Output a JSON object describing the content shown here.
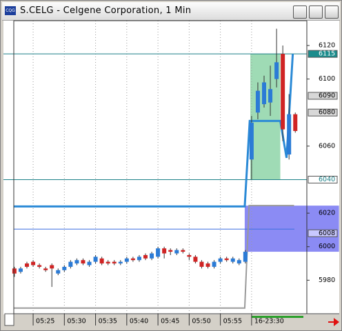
{
  "window_title": "S.CELG - Celgene Corporation, 1 Min",
  "chart_data": {
    "type": "candlestick",
    "x": [
      0,
      1,
      2,
      3,
      4,
      5,
      6,
      7,
      8,
      9,
      10,
      11,
      12,
      13,
      14,
      15,
      16,
      17,
      18,
      19,
      20,
      21,
      22,
      23,
      24,
      25,
      26,
      27,
      28,
      29,
      30,
      31,
      32,
      33,
      34,
      35,
      36,
      37,
      38,
      39,
      40,
      41,
      42,
      43,
      44,
      45
    ],
    "open": [
      5987,
      5985,
      5990,
      5991,
      5989,
      5987,
      5989,
      5984,
      5986,
      5988,
      5990,
      5992,
      5989,
      5991,
      5993,
      5991,
      5991,
      5990,
      5991,
      5993,
      5992,
      5995,
      5993,
      5994,
      5999,
      5998,
      5996,
      5998,
      5995,
      5994,
      5991,
      5990,
      5988,
      5991,
      5993,
      5991,
      5990,
      5991,
      6052,
      6080,
      6085,
      6086,
      6100,
      6115,
      6055,
      6079
    ],
    "high": [
      5988,
      5988,
      5991,
      5992,
      5990,
      5988,
      5990,
      5987,
      5989,
      5992,
      5993,
      5993,
      5992,
      5995,
      5994,
      5992,
      5992,
      5992,
      5994,
      5994,
      5995,
      5996,
      5997,
      6000,
      6000,
      5999,
      5999,
      5999,
      5996,
      5995,
      5992,
      5991,
      5992,
      5994,
      5994,
      5994,
      5993,
      5998,
      6078,
      6098,
      6102,
      6108,
      6130,
      6120,
      6091,
      6080
    ],
    "low": [
      5982,
      5984,
      5987,
      5988,
      5987,
      5985,
      5976,
      5983,
      5985,
      5987,
      5989,
      5989,
      5988,
      5990,
      5989,
      5989,
      5989,
      5989,
      5990,
      5991,
      5991,
      5992,
      5992,
      5993,
      5993,
      5995,
      5995,
      5996,
      5992,
      5990,
      5987,
      5987,
      5987,
      5990,
      5991,
      5990,
      5989,
      5990,
      6040,
      6076,
      6083,
      6078,
      6095,
      6063,
      6052,
      6068
    ],
    "close": [
      5984,
      5987,
      5988,
      5989,
      5988,
      5986,
      5987,
      5986,
      5988,
      5991,
      5992,
      5990,
      5991,
      5994,
      5990,
      5990,
      5990,
      5991,
      5993,
      5992,
      5994,
      5993,
      5996,
      5999,
      5996,
      5997,
      5998,
      5997,
      5994,
      5991,
      5988,
      5988,
      5991,
      5993,
      5992,
      5993,
      5992,
      5997,
      6074,
      6093,
      6098,
      6094,
      6110,
      6070,
      6079,
      6069
    ],
    "up_color": "#2b7bd6",
    "down_color": "#d02424",
    "xlim": [
      -0.1,
      46.85
    ],
    "ylim": [
      5960,
      6134.8
    ],
    "xticks": [
      {
        "value": 3,
        "label": "05:25"
      },
      {
        "value": 8,
        "label": "05:30"
      },
      {
        "value": 13,
        "label": "05:35"
      },
      {
        "value": 18,
        "label": "05:40"
      },
      {
        "value": 23,
        "label": "05:45"
      },
      {
        "value": 28,
        "label": "05:50"
      },
      {
        "value": 33,
        "label": "05:55"
      },
      {
        "value": 38,
        "label": "16-23:30"
      }
    ],
    "yticks": [
      5980,
      6000,
      6020,
      6060,
      6100,
      6120
    ],
    "grid_x": true,
    "zones": [
      {
        "xlim": [
          37.8,
          42.6
        ],
        "ylim": [
          6040,
          6115
        ],
        "color": "rgba(80,190,120,0.55)"
      },
      {
        "xlim": [
          36.9,
          52
        ],
        "ylim": [
          5997,
          6024.5
        ],
        "color": "rgba(90,90,240,0.7)"
      }
    ],
    "hlines": [
      {
        "value": 6115,
        "color": "#1a7f86"
      },
      {
        "value": 6040,
        "color": "#1a7f86"
      },
      {
        "value": 6010.5,
        "color": "#3d6fe0"
      }
    ],
    "markers": [
      {
        "value": 6115,
        "fill": "#1a8c8c",
        "text_color": "#ffffff"
      },
      {
        "value": 6090,
        "fill": "#d8d8d8",
        "text_color": "#000000"
      },
      {
        "value": 6080,
        "fill": "#d8d8d8",
        "text_color": "#000000"
      },
      {
        "value": 6040,
        "fill": "#ffffff",
        "text_color": "#1a7f86"
      },
      {
        "value": 6008,
        "fill": "#c8c8ff",
        "text_color": "#000000"
      }
    ],
    "lines": [
      {
        "color": "#9a9a9a",
        "width": 2,
        "x": [
          -0.1,
          36.9,
          37.6,
          44.8
        ],
        "values": [
          5963.4,
          5963.4,
          6024.5,
          6024.5
        ]
      },
      {
        "color": "#2b8ad6",
        "width": 3,
        "x": [
          -0.1,
          36.9,
          37.7,
          42.6,
          43.6,
          44.6
        ],
        "values": [
          6024,
          6024,
          6075,
          6075,
          6053,
          6115
        ]
      }
    ]
  }
}
